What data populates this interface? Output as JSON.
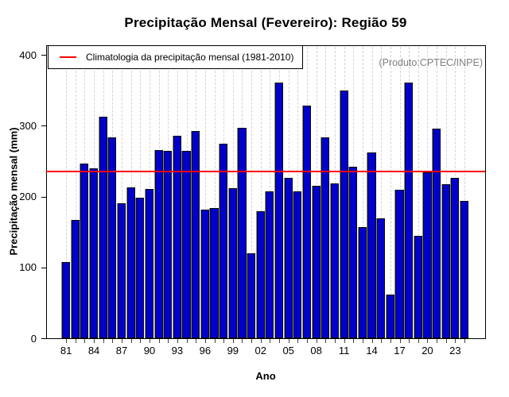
{
  "title": "Precipitação Mensal (Fevereiro): Região 59",
  "watermark": "(Produto:CPTEC/INPE)",
  "legend": {
    "label": "Climatologia da precipitação mensal (1981-2010)",
    "line_color": "#ff0000"
  },
  "chart_data": {
    "type": "bar",
    "title": "Precipitação Mensal (Fevereiro): Região 59",
    "xlabel": "Ano",
    "ylabel": "Precipitação mensal (mm)",
    "ylim": [
      0,
      400
    ],
    "yticks": [
      0,
      100,
      200,
      300,
      400
    ],
    "grid": "vertical-dotted",
    "legend_position": "top-left-inside",
    "bar_color": "#0000CC",
    "bar_border_color": "#0a0a0a",
    "climatology_line": {
      "label": "Climatologia da precipitação mensal (1981-2010)",
      "value": 235,
      "color": "#ff0000"
    },
    "x_tick_label_step": 3,
    "x_tick_labels": [
      "81",
      "84",
      "87",
      "90",
      "93",
      "96",
      "99",
      "02",
      "05",
      "08",
      "11",
      "14",
      "17",
      "20",
      "23"
    ],
    "years": [
      1981,
      1982,
      1983,
      1984,
      1985,
      1986,
      1987,
      1988,
      1989,
      1990,
      1991,
      1992,
      1993,
      1994,
      1995,
      1996,
      1997,
      1998,
      1999,
      2000,
      2001,
      2002,
      2003,
      2004,
      2005,
      2006,
      2007,
      2008,
      2009,
      2010,
      2011,
      2012,
      2013,
      2014,
      2015,
      2016,
      2017,
      2018,
      2019,
      2020,
      2021,
      2022,
      2023,
      2024
    ],
    "values": [
      108,
      167,
      247,
      240,
      313,
      284,
      190,
      213,
      198,
      211,
      265,
      264,
      286,
      264,
      292,
      181,
      184,
      275,
      212,
      297,
      120,
      179,
      207,
      361,
      226,
      207,
      328,
      215,
      284,
      219,
      350,
      242,
      157,
      262,
      169,
      62,
      209,
      361,
      145,
      234,
      296,
      217,
      226,
      194
    ]
  }
}
